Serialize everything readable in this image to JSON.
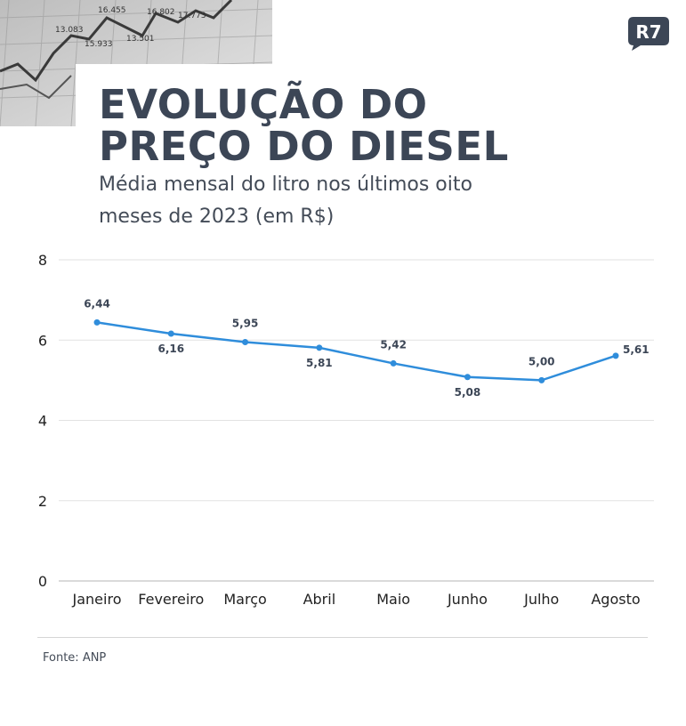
{
  "header": {
    "title_line1": "EVOLUÇÃO DO",
    "title_line2": "PREÇO DO DIESEL",
    "subtitle": "Média mensal do litro nos últimos oito meses de 2023 (em R$)"
  },
  "logo": {
    "text": "R7",
    "color": "#3c4656"
  },
  "background_photo": {
    "labels": [
      "16.455",
      "16.802",
      "17.773",
      "13.083",
      "15.933",
      "13.501"
    ]
  },
  "colors": {
    "line": "#2f8ddb",
    "text": "#3c4656",
    "grid": "#e2e2e2"
  },
  "chart_data": {
    "type": "line",
    "categories": [
      "Janeiro",
      "Fevereiro",
      "Março",
      "Abril",
      "Maio",
      "Junho",
      "Julho",
      "Agosto"
    ],
    "series": [
      {
        "values": [
          6.44,
          6.16,
          5.95,
          5.81,
          5.42,
          5.08,
          5.0,
          5.61
        ],
        "labels": [
          "6,44",
          "6,16",
          "5,95",
          "5,81",
          "5,42",
          "5,08",
          "5,00",
          "5,61"
        ]
      }
    ],
    "ylim": [
      0,
      8
    ],
    "yticks": [
      0,
      2,
      4,
      6,
      8
    ],
    "xlabel": "",
    "ylabel": "",
    "grid": true
  },
  "footer": {
    "source": "Fonte: ANP"
  }
}
